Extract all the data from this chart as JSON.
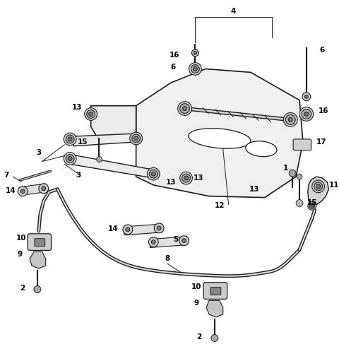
{
  "bg_color": "#ffffff",
  "lc": "#1a1a1a",
  "figsize": [
    4.8,
    5.11
  ],
  "dpi": 100,
  "label_fs": 7.5,
  "label_color": "#000000"
}
